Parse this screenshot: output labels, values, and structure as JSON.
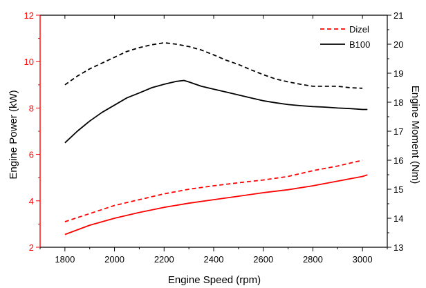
{
  "chart_data": {
    "type": "line",
    "title": "",
    "xlabel": "Engine Speed (rpm)",
    "ylabel_left": "Engine Power (kW)",
    "ylabel_right": "Engine Moment (Nm)",
    "xlim": [
      1700,
      3100
    ],
    "ylim_left": [
      2,
      12
    ],
    "ylim_right": [
      13,
      21
    ],
    "x_ticks": [
      1800,
      2000,
      2200,
      2400,
      2600,
      2800,
      3000
    ],
    "y_left_ticks": [
      2,
      4,
      6,
      8,
      10,
      12
    ],
    "y_right_ticks": [
      13,
      14,
      15,
      16,
      17,
      18,
      19,
      20,
      21
    ],
    "grid": false,
    "legend_position": "top-right",
    "colors": {
      "left_axis": "#ff0000",
      "right_axis": "#000000",
      "power": "#ff0000",
      "moment": "#000000"
    },
    "legend": [
      {
        "label": "Dizel",
        "style": "dashed"
      },
      {
        "label": "B100",
        "style": "solid"
      }
    ],
    "series": [
      {
        "fuel": "Dizel",
        "quantity": "moment",
        "axis": "right",
        "style": "dashed",
        "color": "#000000",
        "x": [
          1800,
          1850,
          1900,
          1950,
          2000,
          2050,
          2100,
          2150,
          2200,
          2250,
          2300,
          2350,
          2400,
          2450,
          2500,
          2550,
          2600,
          2650,
          2700,
          2750,
          2800,
          2850,
          2900,
          2950,
          3000
        ],
        "y": [
          18.6,
          18.9,
          19.15,
          19.35,
          19.55,
          19.75,
          19.88,
          19.98,
          20.05,
          20.0,
          19.92,
          19.8,
          19.63,
          19.45,
          19.3,
          19.12,
          18.95,
          18.8,
          18.7,
          18.62,
          18.55,
          18.55,
          18.55,
          18.5,
          18.48
        ]
      },
      {
        "fuel": "B100",
        "quantity": "moment",
        "axis": "right",
        "style": "solid",
        "color": "#000000",
        "x": [
          1800,
          1850,
          1900,
          1950,
          2000,
          2050,
          2100,
          2150,
          2200,
          2250,
          2280,
          2300,
          2350,
          2400,
          2450,
          2500,
          2550,
          2600,
          2650,
          2700,
          2750,
          2800,
          2850,
          2900,
          2950,
          3000,
          3020
        ],
        "y": [
          16.6,
          17.0,
          17.35,
          17.65,
          17.9,
          18.15,
          18.32,
          18.5,
          18.62,
          18.72,
          18.75,
          18.7,
          18.55,
          18.45,
          18.35,
          18.25,
          18.15,
          18.05,
          17.98,
          17.92,
          17.88,
          17.85,
          17.83,
          17.8,
          17.78,
          17.75,
          17.75
        ]
      },
      {
        "fuel": "Dizel",
        "quantity": "power",
        "axis": "left",
        "style": "dashed",
        "color": "#ff0000",
        "x": [
          1800,
          1900,
          2000,
          2100,
          2200,
          2300,
          2400,
          2500,
          2600,
          2700,
          2800,
          2900,
          3000
        ],
        "y": [
          3.1,
          3.45,
          3.8,
          4.05,
          4.3,
          4.5,
          4.65,
          4.78,
          4.9,
          5.05,
          5.3,
          5.5,
          5.75
        ]
      },
      {
        "fuel": "B100",
        "quantity": "power",
        "axis": "left",
        "style": "solid",
        "color": "#ff0000",
        "x": [
          1800,
          1900,
          2000,
          2100,
          2200,
          2300,
          2400,
          2500,
          2600,
          2700,
          2800,
          2900,
          3000,
          3020
        ],
        "y": [
          2.55,
          2.95,
          3.25,
          3.5,
          3.72,
          3.9,
          4.05,
          4.2,
          4.35,
          4.48,
          4.65,
          4.85,
          5.05,
          5.12
        ]
      }
    ]
  }
}
